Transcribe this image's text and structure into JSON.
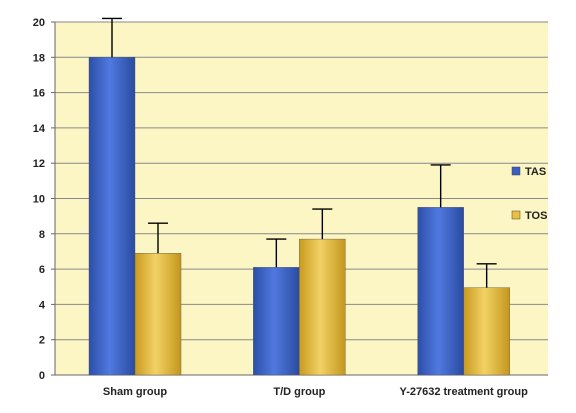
{
  "chart_data": {
    "type": "bar",
    "title": "",
    "xlabel": "",
    "ylabel": "",
    "ylim": [
      0,
      20
    ],
    "yticks": [
      0,
      2,
      4,
      6,
      8,
      10,
      12,
      14,
      16,
      18,
      20
    ],
    "yticks_text": [
      "0",
      "2",
      "4",
      "6",
      "8",
      "10",
      "12",
      "14",
      "16",
      "18",
      "20"
    ],
    "grid": true,
    "legend_position": "right",
    "plot_background": "#FCF5C4",
    "categories": [
      "Sham group",
      "T/D group",
      "Y-27632  treatment group"
    ],
    "series": [
      {
        "name": "TAS",
        "color": "#3A5FC4",
        "values": [
          18.0,
          6.1,
          9.5
        ],
        "errors": [
          2.2,
          1.6,
          2.4
        ]
      },
      {
        "name": "TOS",
        "color": "#E9C03F",
        "values": [
          6.9,
          7.7,
          4.95
        ],
        "errors": [
          1.7,
          1.7,
          1.35
        ]
      }
    ]
  }
}
